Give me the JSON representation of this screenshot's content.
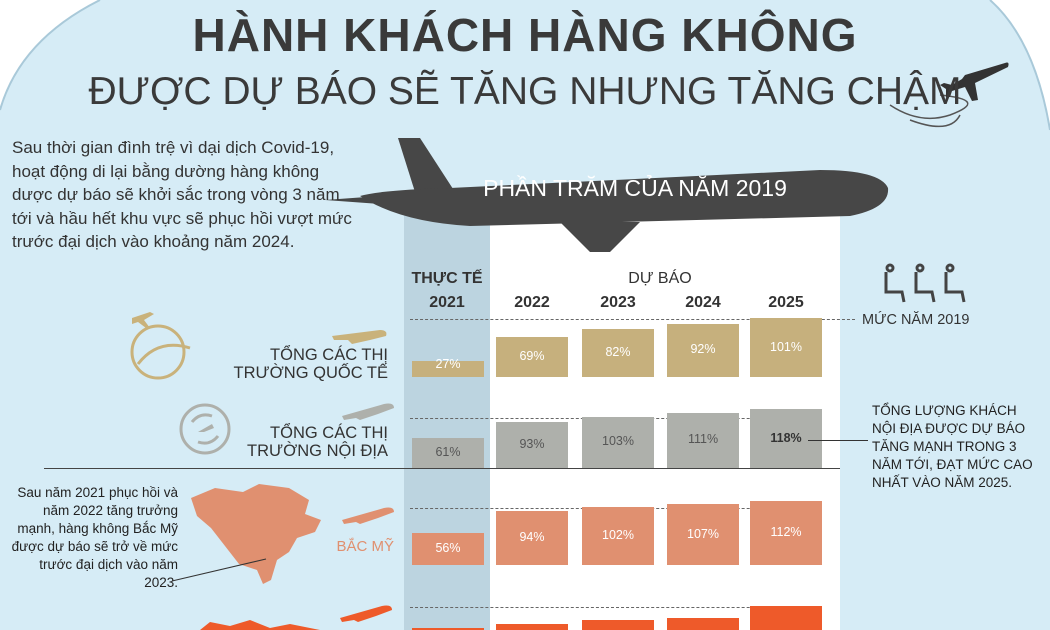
{
  "title": {
    "line1": "HÀNH KHÁCH HÀNG KHÔNG",
    "line2": "ĐƯỢC DỰ BÁO SẼ TĂNG NHƯNG TĂNG CHẬM"
  },
  "intro": "Sau thời gian đình trệ vì dại dịch Covid-19, hoạt động di lại bằng dường hàng không dược dự báo sẽ khởi sắc trong vòng 3 năm tới và hầu hết khu vực sẽ phục hồi vượt mức trước đại dịch vào khoảng năm 2024.",
  "banner": "PHẦN TRĂM CỦA NĂM 2019",
  "headers": {
    "actual": "THỰC TẾ",
    "forecast": "DỰ BÁO",
    "years": [
      "2021",
      "2022",
      "2023",
      "2024",
      "2025"
    ]
  },
  "level_2019_label": "MỨC NĂM 2019",
  "colors": {
    "international": "#c6b07d",
    "domestic": "#aeb0ab",
    "north_america": "#e09070",
    "fourth": "#ee5a2a",
    "background": "#d6ecf6",
    "actual_column": "#bcd4e0",
    "forecast_column": "#ffffff"
  },
  "chart_data": {
    "type": "bar",
    "categories": [
      "2021",
      "2022",
      "2023",
      "2024",
      "2025"
    ],
    "series": [
      {
        "name": "TỔNG CÁC THỊ TRƯỜNG QUỐC TẾ",
        "values": [
          27,
          69,
          82,
          92,
          101
        ],
        "labels": [
          "27%",
          "69%",
          "82%",
          "92%",
          "101%"
        ]
      },
      {
        "name": "TỔNG CÁC THỊ TRƯỜNG NỘI ĐỊA",
        "values": [
          61,
          93,
          103,
          111,
          118
        ],
        "labels": [
          "61%",
          "93%",
          "103%",
          "111%",
          "118%"
        ]
      },
      {
        "name": "BẮC MỸ",
        "values": [
          56,
          94,
          102,
          107,
          112
        ],
        "labels": [
          "56%",
          "94%",
          "102%",
          "107%",
          "112%"
        ]
      }
    ]
  },
  "row_labels": {
    "international": [
      "TỔNG CÁC THỊ",
      "TRƯỜNG QUỐC TẾ"
    ],
    "domestic": [
      "TỔNG CÁC THỊ",
      "TRƯỜNG NỘI ĐỊA"
    ],
    "north_america": "BẮC MỸ"
  },
  "notes": {
    "domestic": "TỔNG LƯỢNG KHÁCH NỘI ĐỊA ĐƯỢC DỰ BÁO TĂNG MẠNH TRONG 3 NĂM TỚI, ĐẠT MỨC CAO NHẤT VÀO NĂM 2025.",
    "north_america": "Sau năm 2021 phục hồi và năm 2022 tăng trưởng mạnh, hàng không Bắc Mỹ được dự báo sẽ trở về mức trước đại dịch vào năm 2023."
  }
}
